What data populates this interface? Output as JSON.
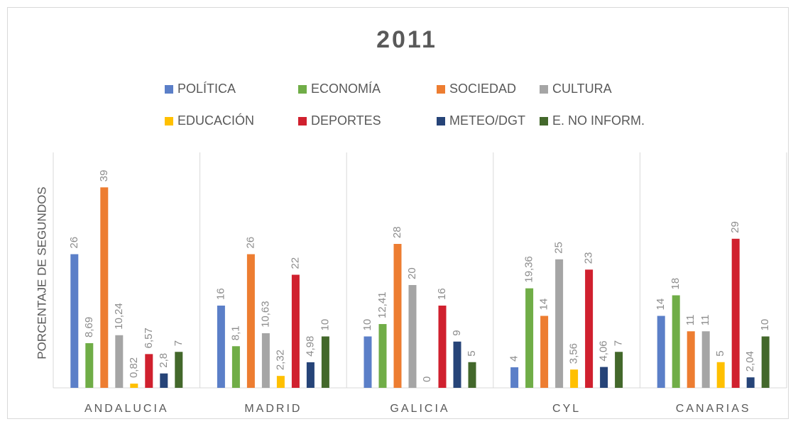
{
  "chart_data": {
    "type": "bar",
    "title": "2011",
    "y_label": "PORCENTAJE DE SEGUNDOS",
    "categories": [
      "ANDALUCIA",
      "MADRID",
      "GALICIA",
      "CYL",
      "CANARIAS"
    ],
    "ylim": [
      0,
      40
    ],
    "series": [
      {
        "name": "POLÍTICA",
        "color": "#5b7fc8",
        "values": [
          26,
          16,
          10,
          4,
          14
        ],
        "value_labels": [
          "26",
          "16",
          "10",
          "4",
          "14"
        ]
      },
      {
        "name": "ECONOMÍA",
        "color": "#70ad47",
        "values": [
          8.69,
          8.1,
          12.41,
          19.36,
          18
        ],
        "value_labels": [
          "8,69",
          "8,1",
          "12,41",
          "19,36",
          "18"
        ]
      },
      {
        "name": "SOCIEDAD",
        "color": "#ed7d31",
        "values": [
          39,
          26,
          28,
          14,
          11
        ],
        "value_labels": [
          "39",
          "26",
          "28",
          "14",
          "11"
        ]
      },
      {
        "name": "CULTURA",
        "color": "#a5a5a5",
        "values": [
          10.24,
          10.63,
          20,
          25,
          11
        ],
        "value_labels": [
          "10,24",
          "10,63",
          "20",
          "25",
          "11"
        ]
      },
      {
        "name": "EDUCACIÓN",
        "color": "#ffc000",
        "values": [
          0.82,
          2.32,
          0,
          3.56,
          5
        ],
        "value_labels": [
          "0,82",
          "2,32",
          "0",
          "3,56",
          "5"
        ]
      },
      {
        "name": "DEPORTES",
        "color": "#d0202e",
        "values": [
          6.57,
          22,
          16,
          23,
          29
        ],
        "value_labels": [
          "6,57",
          "22",
          "16",
          "23",
          "29"
        ]
      },
      {
        "name": "METEO/DGT",
        "color": "#264478",
        "values": [
          2.8,
          4.98,
          9,
          4.06,
          2.04
        ],
        "value_labels": [
          "2,8",
          "4,98",
          "9",
          "4,06",
          "2,04"
        ]
      },
      {
        "name": "E. NO INFORM.",
        "color": "#43682b",
        "values": [
          7,
          10,
          5,
          7,
          10
        ],
        "value_labels": [
          "7",
          "10",
          "5",
          "7",
          "10"
        ]
      }
    ]
  }
}
